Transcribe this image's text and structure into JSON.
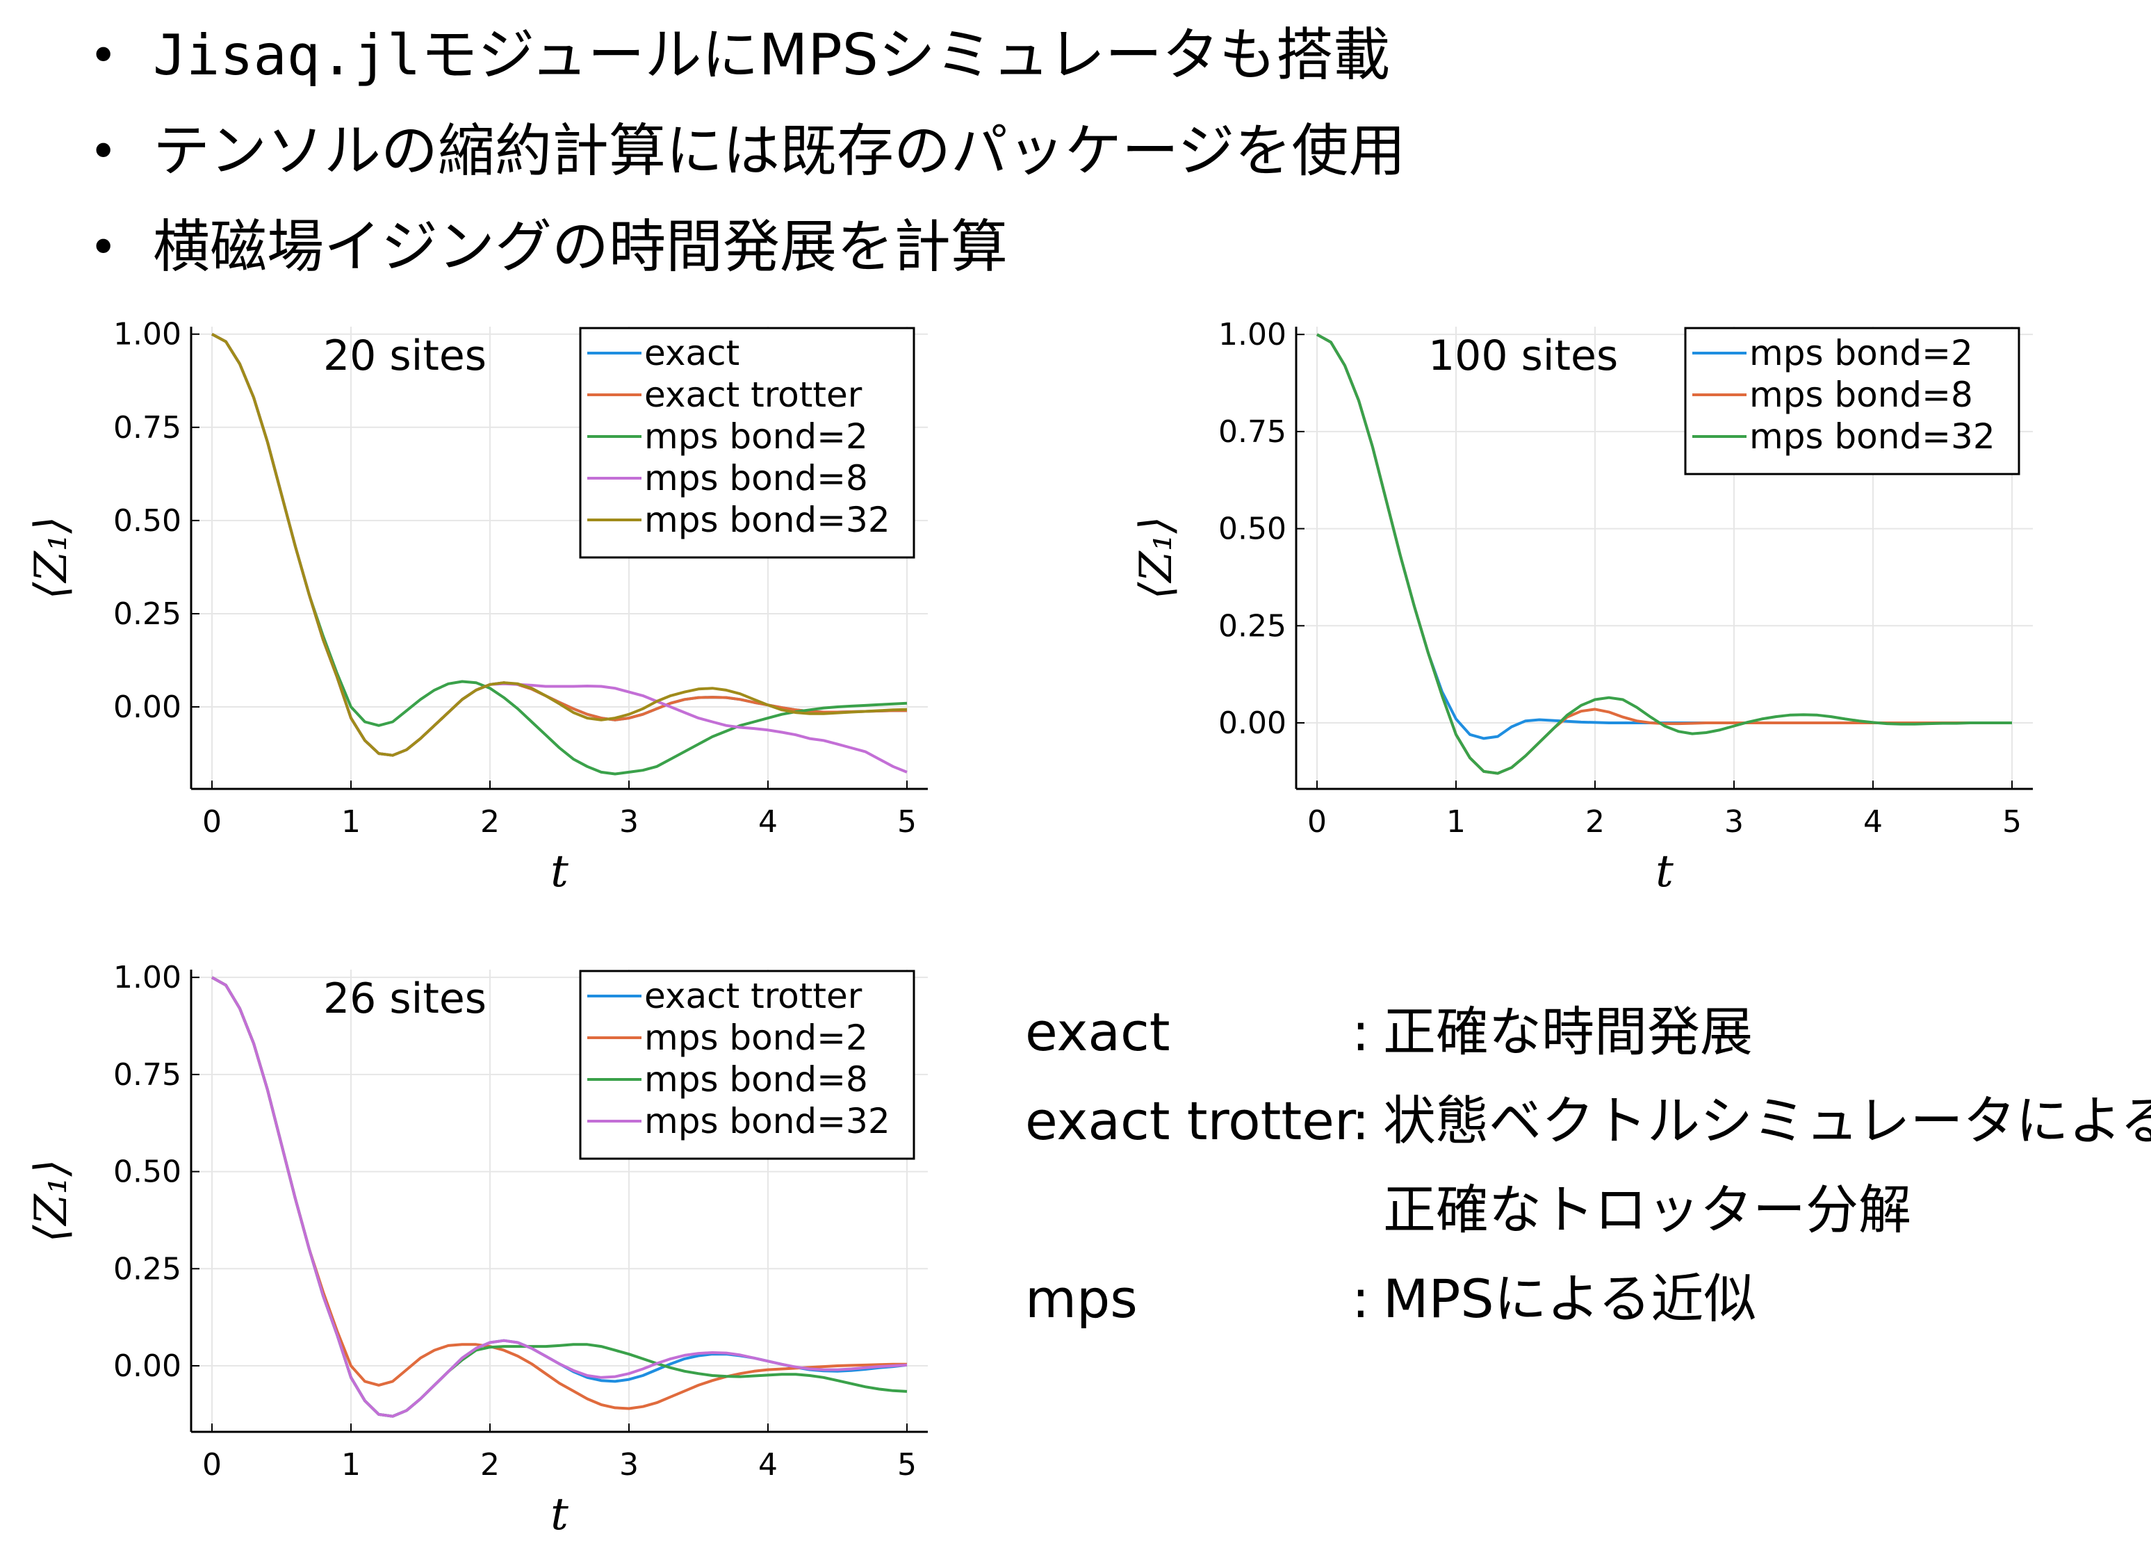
{
  "bullets": {
    "dot": "•",
    "b1_mono": "Jisaq.jl",
    "b1_text": "モジュールにMPSシミュレータも搭載",
    "b2_text": "テンソルの縮約計算には既存のパッケージを使用",
    "b3_text": "横磁場イジングの時間発展を計算"
  },
  "notes": {
    "sep": ":",
    "rows": [
      {
        "term": "exact",
        "desc": "正確な時間発展"
      },
      {
        "term": "exact trotter",
        "desc": "状態ベクトルシミュレータによる"
      },
      {
        "term": "",
        "desc": "正確なトロッター分解"
      },
      {
        "term": "mps",
        "desc": "MPSによる近似"
      }
    ]
  },
  "colors": {
    "c1": "#1f8ee0",
    "c2": "#e06b3d",
    "c3": "#3aa14a",
    "c4": "#c36fd6",
    "c5": "#a08b1a",
    "grid": "#e6e6e6"
  },
  "chart_data": [
    {
      "type": "line",
      "annotation": "20 sites",
      "xlabel": "t",
      "ylabel": "⟨Z₁⟩",
      "xlim": [
        -0.15,
        5.15
      ],
      "ylim": [
        -0.22,
        1.02
      ],
      "xticks": [
        0,
        1,
        2,
        3,
        4,
        5
      ],
      "yticks": [
        0.0,
        0.25,
        0.5,
        0.75,
        1.0
      ],
      "ytick_labels": [
        "0.00",
        "0.25",
        "0.50",
        "0.75",
        "1.00"
      ],
      "legend_position": "top-right",
      "grid": true,
      "x": [
        0,
        0.1,
        0.2,
        0.3,
        0.4,
        0.5,
        0.6,
        0.7,
        0.8,
        0.9,
        1.0,
        1.1,
        1.2,
        1.3,
        1.4,
        1.5,
        1.6,
        1.7,
        1.8,
        1.9,
        2.0,
        2.1,
        2.2,
        2.3,
        2.4,
        2.5,
        2.6,
        2.7,
        2.8,
        2.9,
        3.0,
        3.1,
        3.2,
        3.3,
        3.4,
        3.5,
        3.6,
        3.7,
        3.8,
        3.9,
        4.0,
        4.1,
        4.2,
        4.3,
        4.4,
        4.5,
        4.6,
        4.7,
        4.8,
        4.9,
        5.0
      ],
      "series": [
        {
          "name": "exact",
          "color": "#1f8ee0",
          "values": [
            1.0,
            0.98,
            0.92,
            0.83,
            0.71,
            0.57,
            0.43,
            0.3,
            0.18,
            0.08,
            -0.03,
            -0.09,
            -0.125,
            -0.13,
            -0.115,
            -0.085,
            -0.05,
            -0.015,
            0.02,
            0.045,
            0.06,
            0.065,
            0.06,
            0.048,
            0.03,
            0.012,
            -0.005,
            -0.02,
            -0.03,
            -0.035,
            -0.03,
            -0.02,
            -0.005,
            0.01,
            0.02,
            0.025,
            0.026,
            0.025,
            0.02,
            0.012,
            0.005,
            -0.002,
            -0.008,
            -0.012,
            -0.014,
            -0.014,
            -0.013,
            -0.012,
            -0.011,
            -0.01,
            -0.01
          ]
        },
        {
          "name": "exact trotter",
          "color": "#e06b3d",
          "values": [
            1.0,
            0.98,
            0.92,
            0.83,
            0.71,
            0.57,
            0.43,
            0.3,
            0.18,
            0.08,
            -0.03,
            -0.09,
            -0.125,
            -0.13,
            -0.115,
            -0.085,
            -0.05,
            -0.015,
            0.02,
            0.045,
            0.06,
            0.065,
            0.06,
            0.048,
            0.03,
            0.012,
            -0.005,
            -0.02,
            -0.03,
            -0.035,
            -0.03,
            -0.02,
            -0.005,
            0.01,
            0.02,
            0.025,
            0.026,
            0.025,
            0.02,
            0.012,
            0.005,
            -0.002,
            -0.008,
            -0.012,
            -0.014,
            -0.014,
            -0.013,
            -0.012,
            -0.011,
            -0.01,
            -0.01
          ]
        },
        {
          "name": "mps bond=2",
          "color": "#3aa14a",
          "values": [
            1.0,
            0.98,
            0.92,
            0.83,
            0.71,
            0.57,
            0.43,
            0.3,
            0.19,
            0.09,
            0.0,
            -0.04,
            -0.05,
            -0.04,
            -0.01,
            0.02,
            0.045,
            0.062,
            0.068,
            0.065,
            0.05,
            0.025,
            -0.005,
            -0.04,
            -0.075,
            -0.11,
            -0.14,
            -0.16,
            -0.175,
            -0.18,
            -0.175,
            -0.17,
            -0.16,
            -0.14,
            -0.12,
            -0.1,
            -0.08,
            -0.065,
            -0.05,
            -0.04,
            -0.03,
            -0.02,
            -0.013,
            -0.008,
            -0.003,
            0.0,
            0.002,
            0.004,
            0.006,
            0.008,
            0.01
          ]
        },
        {
          "name": "mps bond=8",
          "color": "#c36fd6",
          "values": [
            1.0,
            0.98,
            0.92,
            0.83,
            0.71,
            0.57,
            0.43,
            0.3,
            0.18,
            0.08,
            -0.03,
            -0.09,
            -0.125,
            -0.13,
            -0.115,
            -0.085,
            -0.05,
            -0.015,
            0.02,
            0.045,
            0.06,
            0.062,
            0.06,
            0.058,
            0.055,
            0.055,
            0.055,
            0.056,
            0.055,
            0.05,
            0.04,
            0.03,
            0.015,
            0.0,
            -0.015,
            -0.03,
            -0.04,
            -0.05,
            -0.055,
            -0.058,
            -0.062,
            -0.068,
            -0.075,
            -0.085,
            -0.09,
            -0.1,
            -0.11,
            -0.12,
            -0.14,
            -0.16,
            -0.175
          ]
        },
        {
          "name": "mps bond=32",
          "color": "#a08b1a",
          "values": [
            1.0,
            0.98,
            0.92,
            0.83,
            0.71,
            0.57,
            0.43,
            0.3,
            0.18,
            0.08,
            -0.03,
            -0.09,
            -0.125,
            -0.13,
            -0.115,
            -0.085,
            -0.05,
            -0.015,
            0.02,
            0.045,
            0.06,
            0.065,
            0.062,
            0.05,
            0.03,
            0.008,
            -0.015,
            -0.03,
            -0.035,
            -0.03,
            -0.02,
            -0.005,
            0.015,
            0.03,
            0.04,
            0.048,
            0.05,
            0.045,
            0.035,
            0.02,
            0.005,
            -0.008,
            -0.015,
            -0.018,
            -0.018,
            -0.016,
            -0.014,
            -0.012,
            -0.01,
            -0.008,
            -0.007
          ]
        }
      ]
    },
    {
      "type": "line",
      "annotation": "100 sites",
      "xlabel": "t",
      "ylabel": "⟨Z₁⟩",
      "xlim": [
        -0.15,
        5.15
      ],
      "ylim": [
        -0.17,
        1.02
      ],
      "xticks": [
        0,
        1,
        2,
        3,
        4,
        5
      ],
      "yticks": [
        0.0,
        0.25,
        0.5,
        0.75,
        1.0
      ],
      "ytick_labels": [
        "0.00",
        "0.25",
        "0.50",
        "0.75",
        "1.00"
      ],
      "legend_position": "top-right",
      "grid": true,
      "x": [
        0,
        0.1,
        0.2,
        0.3,
        0.4,
        0.5,
        0.6,
        0.7,
        0.8,
        0.9,
        1.0,
        1.1,
        1.2,
        1.3,
        1.4,
        1.5,
        1.6,
        1.7,
        1.8,
        1.9,
        2.0,
        2.1,
        2.2,
        2.3,
        2.4,
        2.5,
        2.6,
        2.7,
        2.8,
        2.9,
        3.0,
        3.1,
        3.2,
        3.3,
        3.4,
        3.5,
        3.6,
        3.7,
        3.8,
        3.9,
        4.0,
        4.1,
        4.2,
        4.3,
        4.4,
        4.5,
        4.6,
        4.7,
        4.8,
        4.9,
        5.0
      ],
      "series": [
        {
          "name": "mps bond=2",
          "color": "#1f8ee0",
          "values": [
            1.0,
            0.98,
            0.92,
            0.83,
            0.71,
            0.57,
            0.43,
            0.3,
            0.18,
            0.08,
            0.01,
            -0.03,
            -0.04,
            -0.035,
            -0.01,
            0.005,
            0.008,
            0.006,
            0.004,
            0.002,
            0.001,
            0.0,
            0.0,
            0.0,
            0.0,
            0.0,
            0.0,
            0.0,
            0.0,
            0.0,
            0.0,
            0.0,
            0.0,
            0.0,
            0.0,
            0.0,
            0.0,
            0.0,
            0.0,
            0.0,
            0.0,
            0.0,
            0.0,
            0.0,
            0.0,
            0.0,
            0.0,
            0.0,
            0.0,
            0.0,
            0.0
          ]
        },
        {
          "name": "mps bond=8",
          "color": "#e06b3d",
          "values": [
            1.0,
            0.98,
            0.92,
            0.83,
            0.71,
            0.57,
            0.43,
            0.3,
            0.18,
            0.07,
            -0.03,
            -0.09,
            -0.125,
            -0.13,
            -0.115,
            -0.085,
            -0.05,
            -0.015,
            0.015,
            0.03,
            0.035,
            0.028,
            0.015,
            0.005,
            0.0,
            -0.002,
            -0.002,
            -0.001,
            0.0,
            0.0,
            0.0,
            0.0,
            0.0,
            0.0,
            0.0,
            0.0,
            0.0,
            0.0,
            0.0,
            0.0,
            0.0,
            0.0,
            0.0,
            0.0,
            0.0,
            0.0,
            0.0,
            0.0,
            0.0,
            0.0,
            0.0
          ]
        },
        {
          "name": "mps bond=32",
          "color": "#3aa14a",
          "values": [
            1.0,
            0.98,
            0.92,
            0.83,
            0.71,
            0.57,
            0.43,
            0.3,
            0.18,
            0.07,
            -0.03,
            -0.09,
            -0.125,
            -0.13,
            -0.115,
            -0.085,
            -0.05,
            -0.015,
            0.02,
            0.045,
            0.06,
            0.065,
            0.06,
            0.04,
            0.015,
            -0.008,
            -0.022,
            -0.028,
            -0.025,
            -0.018,
            -0.008,
            0.002,
            0.01,
            0.016,
            0.02,
            0.021,
            0.02,
            0.016,
            0.01,
            0.005,
            0.001,
            -0.002,
            -0.003,
            -0.003,
            -0.002,
            -0.001,
            -0.001,
            0.0,
            0.0,
            0.0,
            0.0
          ]
        }
      ]
    },
    {
      "type": "line",
      "annotation": "26 sites",
      "xlabel": "t",
      "ylabel": "⟨Z₁⟩",
      "xlim": [
        -0.15,
        5.15
      ],
      "ylim": [
        -0.17,
        1.02
      ],
      "xticks": [
        0,
        1,
        2,
        3,
        4,
        5
      ],
      "yticks": [
        0.0,
        0.25,
        0.5,
        0.75,
        1.0
      ],
      "ytick_labels": [
        "0.00",
        "0.25",
        "0.50",
        "0.75",
        "1.00"
      ],
      "legend_position": "top-right",
      "grid": true,
      "x": [
        0,
        0.1,
        0.2,
        0.3,
        0.4,
        0.5,
        0.6,
        0.7,
        0.8,
        0.9,
        1.0,
        1.1,
        1.2,
        1.3,
        1.4,
        1.5,
        1.6,
        1.7,
        1.8,
        1.9,
        2.0,
        2.1,
        2.2,
        2.3,
        2.4,
        2.5,
        2.6,
        2.7,
        2.8,
        2.9,
        3.0,
        3.1,
        3.2,
        3.3,
        3.4,
        3.5,
        3.6,
        3.7,
        3.8,
        3.9,
        4.0,
        4.1,
        4.2,
        4.3,
        4.4,
        4.5,
        4.6,
        4.7,
        4.8,
        4.9,
        5.0
      ],
      "series": [
        {
          "name": "exact trotter",
          "color": "#1f8ee0",
          "values": [
            1.0,
            0.98,
            0.92,
            0.83,
            0.71,
            0.57,
            0.43,
            0.3,
            0.18,
            0.08,
            -0.03,
            -0.09,
            -0.125,
            -0.13,
            -0.115,
            -0.085,
            -0.05,
            -0.015,
            0.02,
            0.045,
            0.06,
            0.065,
            0.06,
            0.045,
            0.025,
            0.005,
            -0.015,
            -0.03,
            -0.038,
            -0.04,
            -0.035,
            -0.025,
            -0.01,
            0.005,
            0.018,
            0.026,
            0.03,
            0.03,
            0.026,
            0.02,
            0.012,
            0.004,
            -0.004,
            -0.01,
            -0.013,
            -0.014,
            -0.012,
            -0.009,
            -0.005,
            -0.002,
            0.002
          ]
        },
        {
          "name": "mps bond=2",
          "color": "#e06b3d",
          "values": [
            1.0,
            0.98,
            0.92,
            0.83,
            0.71,
            0.57,
            0.43,
            0.3,
            0.19,
            0.09,
            0.0,
            -0.04,
            -0.05,
            -0.04,
            -0.01,
            0.02,
            0.04,
            0.052,
            0.055,
            0.055,
            0.05,
            0.04,
            0.025,
            0.005,
            -0.02,
            -0.045,
            -0.065,
            -0.085,
            -0.1,
            -0.108,
            -0.11,
            -0.105,
            -0.095,
            -0.08,
            -0.065,
            -0.05,
            -0.038,
            -0.028,
            -0.02,
            -0.014,
            -0.01,
            -0.008,
            -0.006,
            -0.004,
            -0.002,
            0.0,
            0.001,
            0.002,
            0.003,
            0.004,
            0.004
          ]
        },
        {
          "name": "mps bond=8",
          "color": "#3aa14a",
          "values": [
            1.0,
            0.98,
            0.92,
            0.83,
            0.71,
            0.57,
            0.43,
            0.3,
            0.18,
            0.08,
            -0.03,
            -0.09,
            -0.125,
            -0.13,
            -0.115,
            -0.085,
            -0.05,
            -0.015,
            0.015,
            0.04,
            0.048,
            0.05,
            0.05,
            0.05,
            0.05,
            0.052,
            0.055,
            0.055,
            0.05,
            0.04,
            0.03,
            0.018,
            0.006,
            -0.005,
            -0.014,
            -0.02,
            -0.025,
            -0.027,
            -0.028,
            -0.026,
            -0.024,
            -0.022,
            -0.022,
            -0.025,
            -0.03,
            -0.038,
            -0.046,
            -0.054,
            -0.06,
            -0.064,
            -0.066
          ]
        },
        {
          "name": "mps bond=32",
          "color": "#c36fd6",
          "values": [
            1.0,
            0.98,
            0.92,
            0.83,
            0.71,
            0.57,
            0.43,
            0.3,
            0.18,
            0.08,
            -0.03,
            -0.09,
            -0.125,
            -0.13,
            -0.115,
            -0.085,
            -0.05,
            -0.015,
            0.02,
            0.045,
            0.06,
            0.065,
            0.06,
            0.045,
            0.025,
            0.005,
            -0.012,
            -0.025,
            -0.03,
            -0.028,
            -0.02,
            -0.008,
            0.006,
            0.018,
            0.027,
            0.032,
            0.034,
            0.033,
            0.028,
            0.02,
            0.012,
            0.004,
            -0.003,
            -0.008,
            -0.01,
            -0.01,
            -0.008,
            -0.005,
            -0.002,
            0.0,
            0.002
          ]
        }
      ]
    }
  ]
}
